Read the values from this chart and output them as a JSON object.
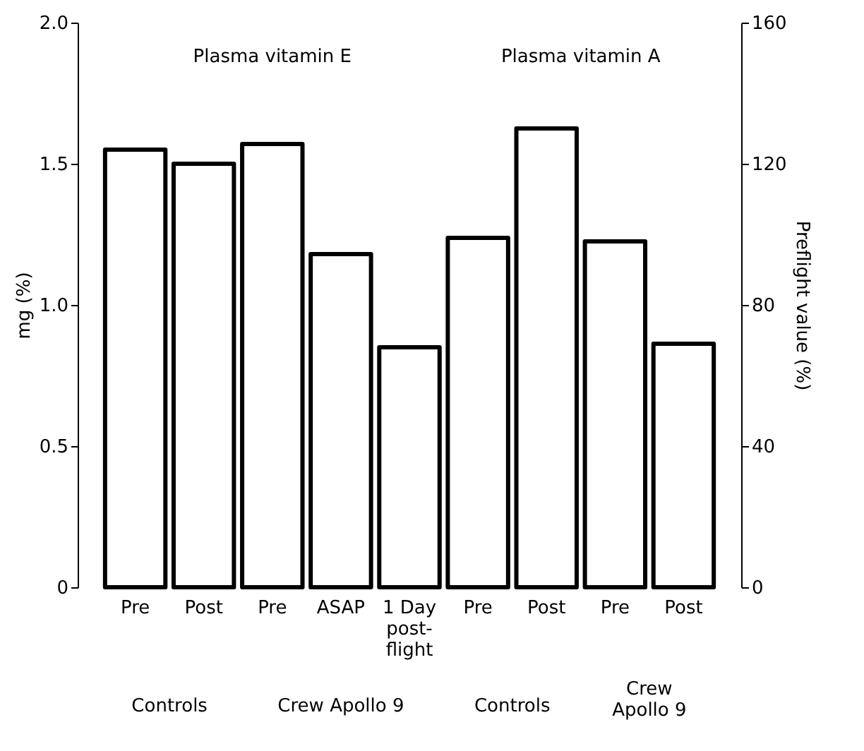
{
  "chart_data": {
    "type": "bar",
    "ylabel": "mg (%)",
    "y2label": "Preflight value (%)",
    "categories": [
      "Pre",
      "Post",
      "Pre",
      "ASAP",
      "1 Day\npost-\nflight",
      "Pre",
      "Post",
      "Pre",
      "Post"
    ],
    "series": [
      {
        "color": "#000000",
        "values": [
          1.55,
          1.5,
          1.57,
          1.18,
          0.85,
          null,
          null,
          null,
          null
        ]
      },
      {
        "color": "#000000",
        "axis": "y2",
        "values": [
          null,
          null,
          null,
          null,
          null,
          99,
          130,
          98,
          69
        ]
      }
    ],
    "ylim": [
      0,
      2
    ],
    "yticks": [
      0,
      {
        "value": 0.5,
        "label": "0.5"
      },
      {
        "value": 1,
        "label": "1.0"
      },
      {
        "value": 1.5,
        "label": "1.5"
      },
      {
        "value": 2,
        "label": "2.0"
      }
    ],
    "y2lim": [
      0,
      160
    ],
    "y2ticks": [
      0,
      40,
      80,
      120,
      160
    ],
    "grid": false,
    "annotations": [
      "Plasma vitamin E",
      "Plasma vitamin A",
      "Controls",
      "Crew Apollo 9",
      "Controls",
      "Crew\nApollo 9"
    ]
  }
}
